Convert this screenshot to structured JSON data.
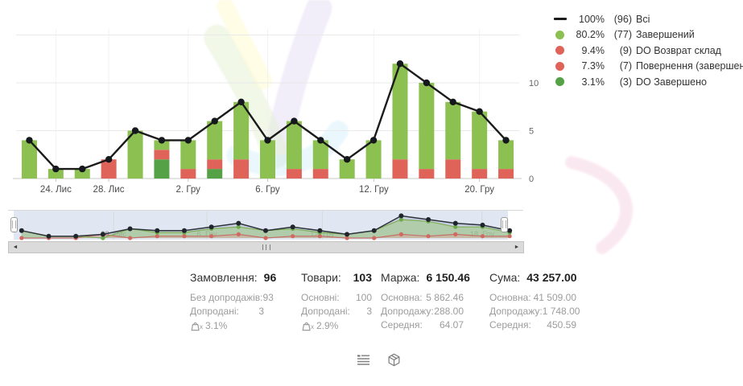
{
  "legend": {
    "items": [
      {
        "swatch": "line",
        "color": "#1b1b1b",
        "percent": "100%",
        "count": "(96)",
        "label": "Всі"
      },
      {
        "swatch": "dot",
        "color": "#8cc152",
        "percent": "80.2%",
        "count": "(77)",
        "label": "Завершений"
      },
      {
        "swatch": "dot",
        "color": "#e0635a",
        "percent": "9.4%",
        "count": "(9)",
        "label": "DO Возврат склад"
      },
      {
        "swatch": "dot",
        "color": "#e0635a",
        "percent": "7.3%",
        "count": "(7)",
        "label": "Повернення (завершений)"
      },
      {
        "swatch": "dot",
        "color": "#55a145",
        "percent": "3.1%",
        "count": "(3)",
        "label": "DO Завершено"
      }
    ]
  },
  "chart_data": {
    "type": "bar",
    "subtype": "stacked bars with total line overlay",
    "x": [
      1,
      2,
      3,
      4,
      5,
      6,
      7,
      8,
      9,
      10,
      11,
      12,
      13,
      14,
      15,
      16,
      17,
      18,
      19
    ],
    "series": [
      {
        "name": "DO Завершено",
        "color": "#55a145",
        "values": [
          0,
          0,
          0,
          0,
          0,
          2,
          0,
          1,
          0,
          0,
          0,
          0,
          0,
          0,
          0,
          0,
          0,
          0,
          0
        ]
      },
      {
        "name": "DO Возврат склад",
        "color": "#e0635a",
        "values": [
          0,
          0,
          0,
          2,
          0,
          0,
          1,
          0,
          0,
          0,
          1,
          0,
          0,
          0,
          2,
          1,
          0,
          1,
          1
        ]
      },
      {
        "name": "Повернення (завершений)",
        "color": "#e0635a",
        "values": [
          0,
          0,
          0,
          0,
          0,
          1,
          0,
          1,
          2,
          0,
          0,
          1,
          0,
          0,
          0,
          0,
          2,
          0,
          0
        ]
      },
      {
        "name": "Завершений",
        "color": "#8cc152",
        "values": [
          4,
          1,
          1,
          0,
          5,
          1,
          3,
          4,
          6,
          4,
          5,
          3,
          2,
          4,
          10,
          9,
          6,
          6,
          3
        ]
      }
    ],
    "line": {
      "name": "Всі",
      "color": "#1b1b1b",
      "values": [
        4,
        1,
        1,
        2,
        5,
        4,
        4,
        6,
        8,
        4,
        6,
        4,
        2,
        4,
        12,
        10,
        8,
        7,
        4
      ]
    },
    "x_ticks": [
      {
        "label": "24. Лис",
        "pct": 7.9
      },
      {
        "label": "28. Лис",
        "pct": 18.4
      },
      {
        "label": "2. Гру",
        "pct": 34.2
      },
      {
        "label": "6. Гру",
        "pct": 50.0
      },
      {
        "label": "12. Гру",
        "pct": 71.1
      },
      {
        "label": "20. Гру",
        "pct": 92.1
      }
    ],
    "y_ticks": [
      0,
      5,
      10
    ],
    "ylim": [
      0,
      15.5
    ],
    "legend_position": "right",
    "grid": "horizontal light + faint vertical"
  },
  "navigator": {
    "ticks": [
      {
        "label": "28. Лис",
        "pct": 20.5
      },
      {
        "label": "6. Гру",
        "pct": 38.6
      },
      {
        "label": "12. Гру",
        "pct": 61.0
      },
      {
        "label": "18. Гру",
        "pct": 92.0
      }
    ]
  },
  "scrollbar": {
    "left_arrow": "◄",
    "right_arrow": "►"
  },
  "stats": {
    "columns": [
      {
        "title": "Замовлення:",
        "value": "96",
        "rows": [
          {
            "label": "Без допродажів:",
            "value": "93"
          },
          {
            "label": "Допродані:",
            "value": "3"
          }
        ],
        "upsell": "3.1%"
      },
      {
        "title": "Товари:",
        "value": "103",
        "rows": [
          {
            "label": "Основні:",
            "value": "100"
          },
          {
            "label": "Допродані:",
            "value": "3"
          }
        ],
        "upsell": "2.9%"
      },
      {
        "title": "Маржа:",
        "value": "6 150.46",
        "rows": [
          {
            "label": "Основна:",
            "value": "5 862.46"
          },
          {
            "label": "Допродажу:",
            "value": "288.00"
          },
          {
            "label": "Середня:",
            "value": "64.07"
          }
        ]
      },
      {
        "title": "Сума:",
        "value": "43 257.00",
        "rows": [
          {
            "label": "Основна:",
            "value": "41 509.00"
          },
          {
            "label": "Допродажу:",
            "value": "1 748.00"
          },
          {
            "label": "Середня:",
            "value": "450.59"
          }
        ]
      }
    ]
  },
  "footer_icons": [
    {
      "name": "summary-list-icon"
    },
    {
      "name": "package-icon"
    }
  ]
}
